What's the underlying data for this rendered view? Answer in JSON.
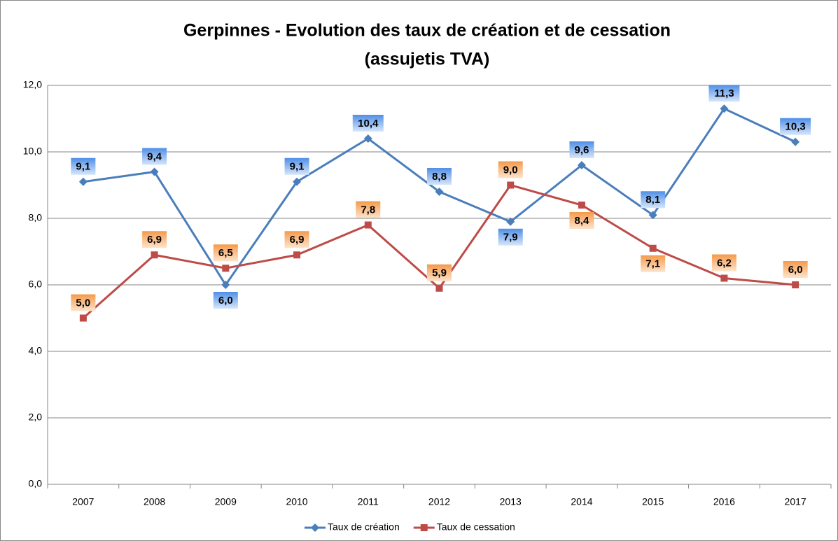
{
  "chart_data": {
    "type": "line",
    "title": [
      "Gerpinnes - Evolution des taux de création et de cessation",
      "(assujetis TVA)"
    ],
    "categories": [
      "2007",
      "2008",
      "2009",
      "2010",
      "2011",
      "2012",
      "2013",
      "2014",
      "2015",
      "2016",
      "2017"
    ],
    "series": [
      {
        "name": "Taux de création",
        "color": "#4a7ebb",
        "marker": "diamond",
        "values": [
          9.1,
          9.4,
          6.0,
          9.1,
          10.4,
          8.8,
          7.9,
          9.6,
          8.1,
          11.3,
          10.3
        ],
        "value_labels": [
          "9,1",
          "9,4",
          "6,0",
          "9,1",
          "10,4",
          "8,8",
          "7,9",
          "9,6",
          "8,1",
          "11,3",
          "10,3"
        ]
      },
      {
        "name": "Taux de cessation",
        "color": "#be4b48",
        "marker": "square",
        "values": [
          5.0,
          6.9,
          6.5,
          6.9,
          7.8,
          5.9,
          9.0,
          8.4,
          7.1,
          6.2,
          6.0
        ],
        "value_labels": [
          "5,0",
          "6,9",
          "6,5",
          "6,9",
          "7,8",
          "5,9",
          "9,0",
          "8,4",
          "7,1",
          "6,2",
          "6,0"
        ]
      }
    ],
    "ylim": [
      0,
      12
    ],
    "yticks": [
      {
        "value": 0,
        "label": "0,0"
      },
      {
        "value": 2,
        "label": "2,0"
      },
      {
        "value": 4,
        "label": "4,0"
      },
      {
        "value": 6,
        "label": "6,0"
      },
      {
        "value": 8,
        "label": "8,0"
      },
      {
        "value": 10,
        "label": "10,0"
      },
      {
        "value": 12,
        "label": "12,0"
      }
    ],
    "grid": true,
    "legend": "bottom"
  }
}
